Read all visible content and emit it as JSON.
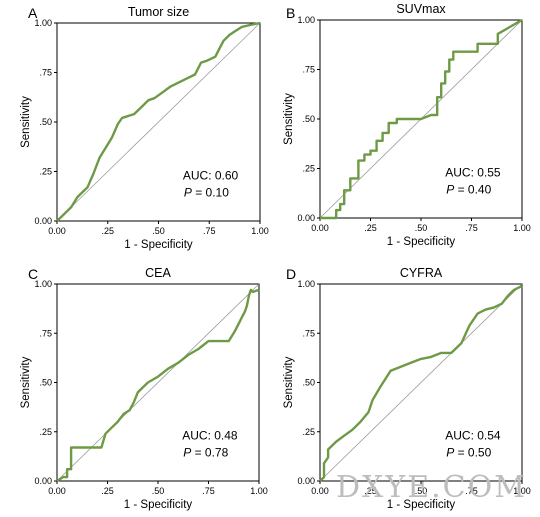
{
  "chart_data": [
    {
      "type": "line",
      "panel": "A",
      "title": "Tumor size",
      "xlabel": "1 - Specificity",
      "ylabel": "Sensitivity",
      "xlim": [
        0,
        1
      ],
      "ylim": [
        0,
        1
      ],
      "xticks": [
        "0.00",
        ".25",
        ".50",
        ".75",
        "1.00"
      ],
      "yticks": [
        "0.00",
        ".25",
        ".50",
        ".75",
        "1.00"
      ],
      "auc_label": "AUC: 0.60",
      "p_prefix": "P",
      "p_value": " = 0.10",
      "series": [
        {
          "x": [
            0,
            0.03,
            0.07,
            0.1,
            0.13,
            0.15,
            0.18,
            0.21,
            0.24,
            0.27,
            0.3,
            0.32,
            0.38,
            0.42,
            0.45,
            0.48,
            0.52,
            0.56,
            0.6,
            0.64,
            0.68,
            0.71,
            0.74,
            0.78,
            0.8,
            0.82,
            0.85,
            0.88,
            0.91,
            0.95,
            1.0
          ],
          "y": [
            0,
            0.03,
            0.07,
            0.12,
            0.15,
            0.17,
            0.24,
            0.32,
            0.37,
            0.42,
            0.49,
            0.52,
            0.54,
            0.58,
            0.61,
            0.62,
            0.65,
            0.68,
            0.7,
            0.72,
            0.74,
            0.8,
            0.81,
            0.83,
            0.87,
            0.91,
            0.94,
            0.96,
            0.98,
            0.99,
            1.0
          ]
        }
      ]
    },
    {
      "type": "line",
      "panel": "B",
      "title": "SUVmax",
      "xlabel": "1 - Specificity",
      "ylabel": "Sensitivity",
      "xlim": [
        0,
        1
      ],
      "ylim": [
        0,
        1
      ],
      "xticks": [
        "0.00",
        ".25",
        ".50",
        ".75",
        "1.00"
      ],
      "yticks": [
        "0.00",
        ".25",
        ".50",
        ".75",
        "1.00"
      ],
      "auc_label": "AUC: 0.55",
      "p_prefix": "P",
      "p_value": " = 0.40",
      "series": [
        {
          "x": [
            0,
            0.08,
            0.08,
            0.1,
            0.1,
            0.12,
            0.12,
            0.15,
            0.15,
            0.19,
            0.19,
            0.22,
            0.22,
            0.25,
            0.25,
            0.28,
            0.28,
            0.31,
            0.31,
            0.34,
            0.34,
            0.38,
            0.38,
            0.5,
            0.55,
            0.58,
            0.58,
            0.6,
            0.6,
            0.62,
            0.62,
            0.64,
            0.64,
            0.66,
            0.66,
            0.78,
            0.78,
            0.88,
            0.88,
            1.0
          ],
          "y": [
            0,
            0,
            0.04,
            0.04,
            0.07,
            0.07,
            0.14,
            0.14,
            0.2,
            0.2,
            0.29,
            0.29,
            0.32,
            0.32,
            0.34,
            0.34,
            0.39,
            0.39,
            0.43,
            0.43,
            0.48,
            0.48,
            0.5,
            0.5,
            0.52,
            0.52,
            0.61,
            0.61,
            0.68,
            0.68,
            0.74,
            0.74,
            0.8,
            0.8,
            0.84,
            0.84,
            0.88,
            0.88,
            0.93,
            1.0
          ]
        }
      ]
    },
    {
      "type": "line",
      "panel": "C",
      "title": "CEA",
      "xlabel": "1 - Specificity",
      "ylabel": "Sensitivity",
      "xlim": [
        0,
        1
      ],
      "ylim": [
        0,
        1
      ],
      "xticks": [
        "0.00",
        ".25",
        ".50",
        ".75",
        "1.00"
      ],
      "yticks": [
        "0.00",
        ".25",
        ".50",
        ".75",
        "1.00"
      ],
      "auc_label": "AUC: 0.48",
      "p_prefix": "P",
      "p_value": " = 0.78",
      "series": [
        {
          "x": [
            0,
            0.03,
            0.05,
            0.05,
            0.07,
            0.07,
            0.22,
            0.24,
            0.27,
            0.3,
            0.33,
            0.36,
            0.38,
            0.4,
            0.42,
            0.45,
            0.5,
            0.55,
            0.6,
            0.65,
            0.7,
            0.75,
            0.85,
            0.88,
            0.9,
            0.92,
            0.93,
            0.94,
            0.95,
            0.96,
            0.97,
            1.0
          ],
          "y": [
            0,
            0.02,
            0.02,
            0.06,
            0.06,
            0.17,
            0.17,
            0.24,
            0.27,
            0.3,
            0.34,
            0.36,
            0.4,
            0.45,
            0.47,
            0.5,
            0.53,
            0.57,
            0.6,
            0.64,
            0.67,
            0.71,
            0.71,
            0.76,
            0.8,
            0.84,
            0.86,
            0.89,
            0.94,
            0.97,
            0.96,
            0.97
          ]
        }
      ]
    },
    {
      "type": "line",
      "panel": "D",
      "title": "CYFRA",
      "xlabel": "1 - Specificity",
      "ylabel": "Sensitivity",
      "xlim": [
        0,
        1
      ],
      "ylim": [
        0,
        1
      ],
      "xticks": [
        "0.00",
        ".25",
        ".50",
        ".75",
        "1.00"
      ],
      "yticks": [
        "0.00",
        ".25",
        ".50",
        ".75",
        "1.00"
      ],
      "auc_label": "AUC: 0.54",
      "p_prefix": "P",
      "p_value": " = 0.50",
      "series": [
        {
          "x": [
            0,
            0.02,
            0.02,
            0.04,
            0.04,
            0.08,
            0.12,
            0.16,
            0.2,
            0.24,
            0.26,
            0.3,
            0.35,
            0.4,
            0.45,
            0.5,
            0.55,
            0.6,
            0.65,
            0.7,
            0.74,
            0.78,
            0.82,
            0.86,
            0.9,
            0.93,
            0.96,
            0.98,
            1.0
          ],
          "y": [
            0,
            0.02,
            0.09,
            0.12,
            0.16,
            0.2,
            0.23,
            0.26,
            0.3,
            0.35,
            0.41,
            0.48,
            0.56,
            0.58,
            0.6,
            0.62,
            0.63,
            0.65,
            0.65,
            0.7,
            0.79,
            0.85,
            0.87,
            0.88,
            0.9,
            0.94,
            0.97,
            0.98,
            0.99
          ]
        }
      ]
    }
  ],
  "style": {
    "roc_color": "#6e9a46",
    "diagonal_color": "#9a9a9a"
  },
  "watermark": "DXYE.COM"
}
